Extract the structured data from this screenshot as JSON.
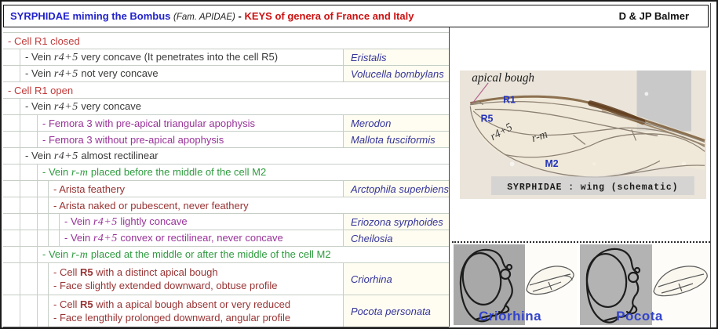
{
  "header": {
    "title_main": "SYRPHIDAE miming the Bombus",
    "title_family": "(Fam. APIDAE)",
    "title_dash": " - ",
    "title_keys": "KEYS of genera of France and Italy",
    "author": "D & JP Balmer"
  },
  "key_table": {
    "rows": [
      {
        "level": 0,
        "color": "red",
        "lines": [
          "- Cell R1 closed"
        ],
        "genus": ""
      },
      {
        "level": 1,
        "color": "dark",
        "lines": [
          "- Vein {i:r4+5} very concave (It penetrates into the cell R5)"
        ],
        "genus": "Eristalis"
      },
      {
        "level": 1,
        "color": "dark",
        "lines": [
          "- Vein {i:r4+5} not very concave"
        ],
        "genus": "Volucella bombylans"
      },
      {
        "level": 0,
        "color": "red",
        "lines": [
          "- Cell R1 open"
        ],
        "genus": ""
      },
      {
        "level": 1,
        "color": "dark",
        "lines": [
          "- Vein {i:r4+5} very concave"
        ],
        "genus": ""
      },
      {
        "level": 2,
        "color": "purple",
        "lines": [
          "- Femora 3 with pre-apical triangular apophysis"
        ],
        "genus": "Merodon"
      },
      {
        "level": 2,
        "color": "purple",
        "lines": [
          "- Femora 3 without pre-apical apophysis"
        ],
        "genus": "Mallota fusciformis"
      },
      {
        "level": 1,
        "color": "dark",
        "lines": [
          "- Vein {i:r4+5} almost rectilinear"
        ],
        "genus": ""
      },
      {
        "level": 2,
        "color": "green",
        "lines": [
          "- Vein {i:r-m} placed before the middle of the cell M2"
        ],
        "genus": ""
      },
      {
        "level": 3,
        "color": "maroon",
        "lines": [
          "- Arista feathery"
        ],
        "genus": "Arctophila superbiens"
      },
      {
        "level": 3,
        "color": "maroon",
        "lines": [
          "- Arista naked or pubescent, never feathery"
        ],
        "genus": ""
      },
      {
        "level": 4,
        "color": "purple",
        "lines": [
          "- Vein {i:r4+5} lightly concave"
        ],
        "genus": "Eriozona syrphoides"
      },
      {
        "level": 4,
        "color": "purple",
        "lines": [
          "- Vein {i:r4+5} convex or rectilinear, never concave"
        ],
        "genus": "Cheilosia"
      },
      {
        "level": 2,
        "color": "green",
        "lines": [
          "- Vein {i:r-m} placed at the middle or after the middle of the cell M2"
        ],
        "genus": ""
      },
      {
        "level": 3,
        "color": "maroon",
        "lines": [
          "- Cell {b:R5} with a distinct apical bough",
          "- Face slightly extended downward, obtuse profile"
        ],
        "genus": "Criorhina"
      },
      {
        "level": 3,
        "color": "maroon",
        "lines": [
          "- Cell {b:R5} with a apical bough absent or very reduced",
          "- Face lengthily prolonged downward, angular profile"
        ],
        "genus": "Pocota personata"
      }
    ]
  },
  "wing_figure": {
    "apical_bough_label": "apical bough",
    "cell_r1_label": "R1",
    "cell_r5_label": "R5",
    "vein_r45_label": "r4+5",
    "vein_rm_label": "r-m",
    "cell_m2_label": "M2",
    "caption": "SYRPHIDAE : wing (schematic)"
  },
  "profile_figures": {
    "criorhina_label": "Criorhina",
    "pocota_label": "Pocota"
  },
  "colors": {
    "title_blue": "#2222cc",
    "title_red": "#cc1111",
    "key_red": "#c23b3b",
    "key_dark": "#3a3a3a",
    "key_purple": "#993399",
    "key_green": "#2f9b3f",
    "key_maroon": "#993333",
    "genus_blue": "#333399",
    "figure_label_blue": "#2233bb",
    "gridline": "#c6cec6"
  }
}
